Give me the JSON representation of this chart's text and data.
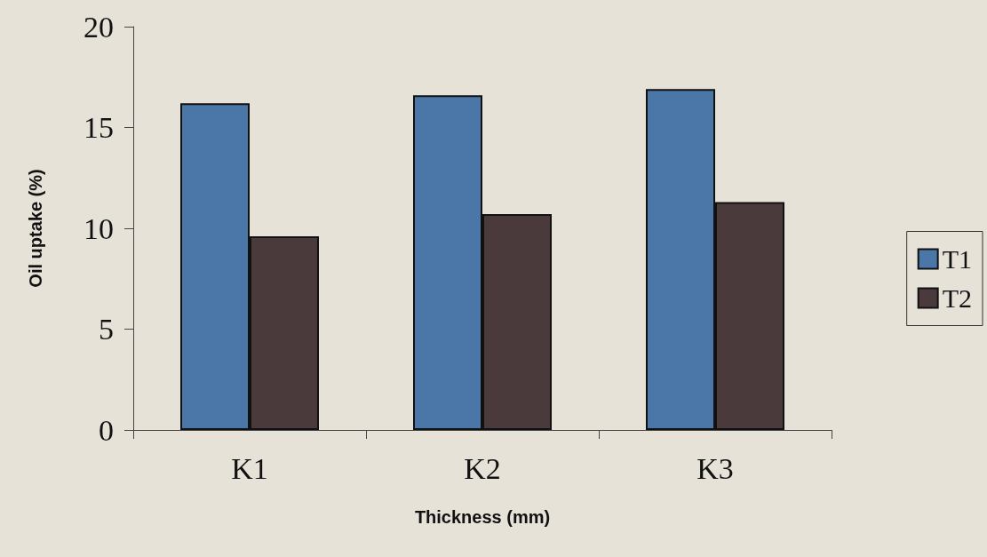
{
  "chart_data": {
    "type": "bar",
    "xlabel": "Thickness (mm)",
    "ylabel": "Oil uptake (%)",
    "categories": [
      "K1",
      "K2",
      "K3"
    ],
    "series": [
      {
        "name": "T1",
        "color": "#4a76a8",
        "values": [
          16.2,
          16.6,
          16.9
        ]
      },
      {
        "name": "T2",
        "color": "#4a3a3c",
        "values": [
          9.6,
          10.7,
          11.3
        ]
      }
    ],
    "ylim": [
      0,
      20
    ],
    "yticks": [
      0,
      5,
      10,
      15,
      20
    ],
    "grid": false,
    "legend": "right"
  }
}
